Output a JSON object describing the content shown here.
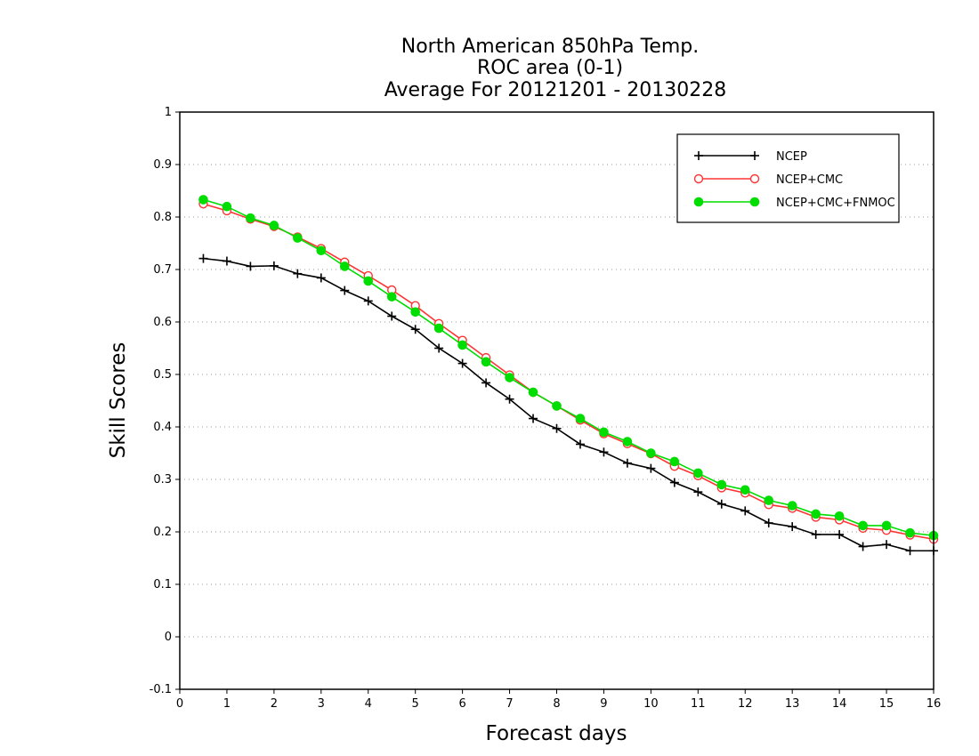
{
  "chart_data": {
    "type": "line",
    "title": [
      "North American 850hPa Temp.",
      "ROC area (0-1)",
      "Average For 20121201 - 20130228"
    ],
    "xlabel": "Forecast days",
    "ylabel": "Skill Scores",
    "xlim": [
      0,
      16
    ],
    "ylim": [
      -0.1,
      1
    ],
    "xticks": [
      "0",
      "1",
      "2",
      "3",
      "4",
      "5",
      "6",
      "7",
      "8",
      "9",
      "10",
      "11",
      "12",
      "13",
      "14",
      "15",
      "16"
    ],
    "yticks": [
      "-0.1",
      "0",
      "0.1",
      "0.2",
      "0.3",
      "0.4",
      "0.5",
      "0.6",
      "0.7",
      "0.8",
      "0.9",
      "1"
    ],
    "grid": "horizontal dotted",
    "legend_position": "top-right",
    "x": [
      0.5,
      1,
      1.5,
      2,
      2.5,
      3,
      3.5,
      4,
      4.5,
      5,
      5.5,
      6,
      6.5,
      7,
      7.5,
      8,
      8.5,
      9,
      9.5,
      10,
      10.5,
      11,
      11.5,
      12,
      12.5,
      13,
      13.5,
      14,
      14.5,
      15,
      15.5,
      16
    ],
    "series": [
      {
        "name": "NCEP",
        "color": "#000000",
        "marker": "plus",
        "values": [
          0.721,
          0.716,
          0.706,
          0.707,
          0.692,
          0.684,
          0.66,
          0.64,
          0.611,
          0.586,
          0.55,
          0.521,
          0.484,
          0.453,
          0.416,
          0.397,
          0.367,
          0.352,
          0.331,
          0.321,
          0.294,
          0.276,
          0.253,
          0.24,
          0.217,
          0.21,
          0.195,
          0.195,
          0.172,
          0.176,
          0.164,
          0.164
        ]
      },
      {
        "name": "NCEP+CMC",
        "color": "#ff3333",
        "marker": "open-circle",
        "values": [
          0.825,
          0.812,
          0.796,
          0.782,
          0.762,
          0.74,
          0.714,
          0.688,
          0.661,
          0.631,
          0.597,
          0.565,
          0.532,
          0.499,
          0.466,
          0.44,
          0.413,
          0.387,
          0.368,
          0.349,
          0.325,
          0.307,
          0.284,
          0.274,
          0.252,
          0.245,
          0.228,
          0.223,
          0.207,
          0.203,
          0.194,
          0.186
        ]
      },
      {
        "name": "NCEP+CMC+FNMOC",
        "color": "#00dd00",
        "marker": "filled-circle",
        "values": [
          0.833,
          0.82,
          0.798,
          0.784,
          0.76,
          0.736,
          0.706,
          0.678,
          0.648,
          0.619,
          0.588,
          0.556,
          0.524,
          0.494,
          0.466,
          0.44,
          0.416,
          0.39,
          0.372,
          0.35,
          0.334,
          0.312,
          0.29,
          0.28,
          0.26,
          0.25,
          0.234,
          0.23,
          0.212,
          0.212,
          0.198,
          0.193
        ]
      }
    ]
  }
}
